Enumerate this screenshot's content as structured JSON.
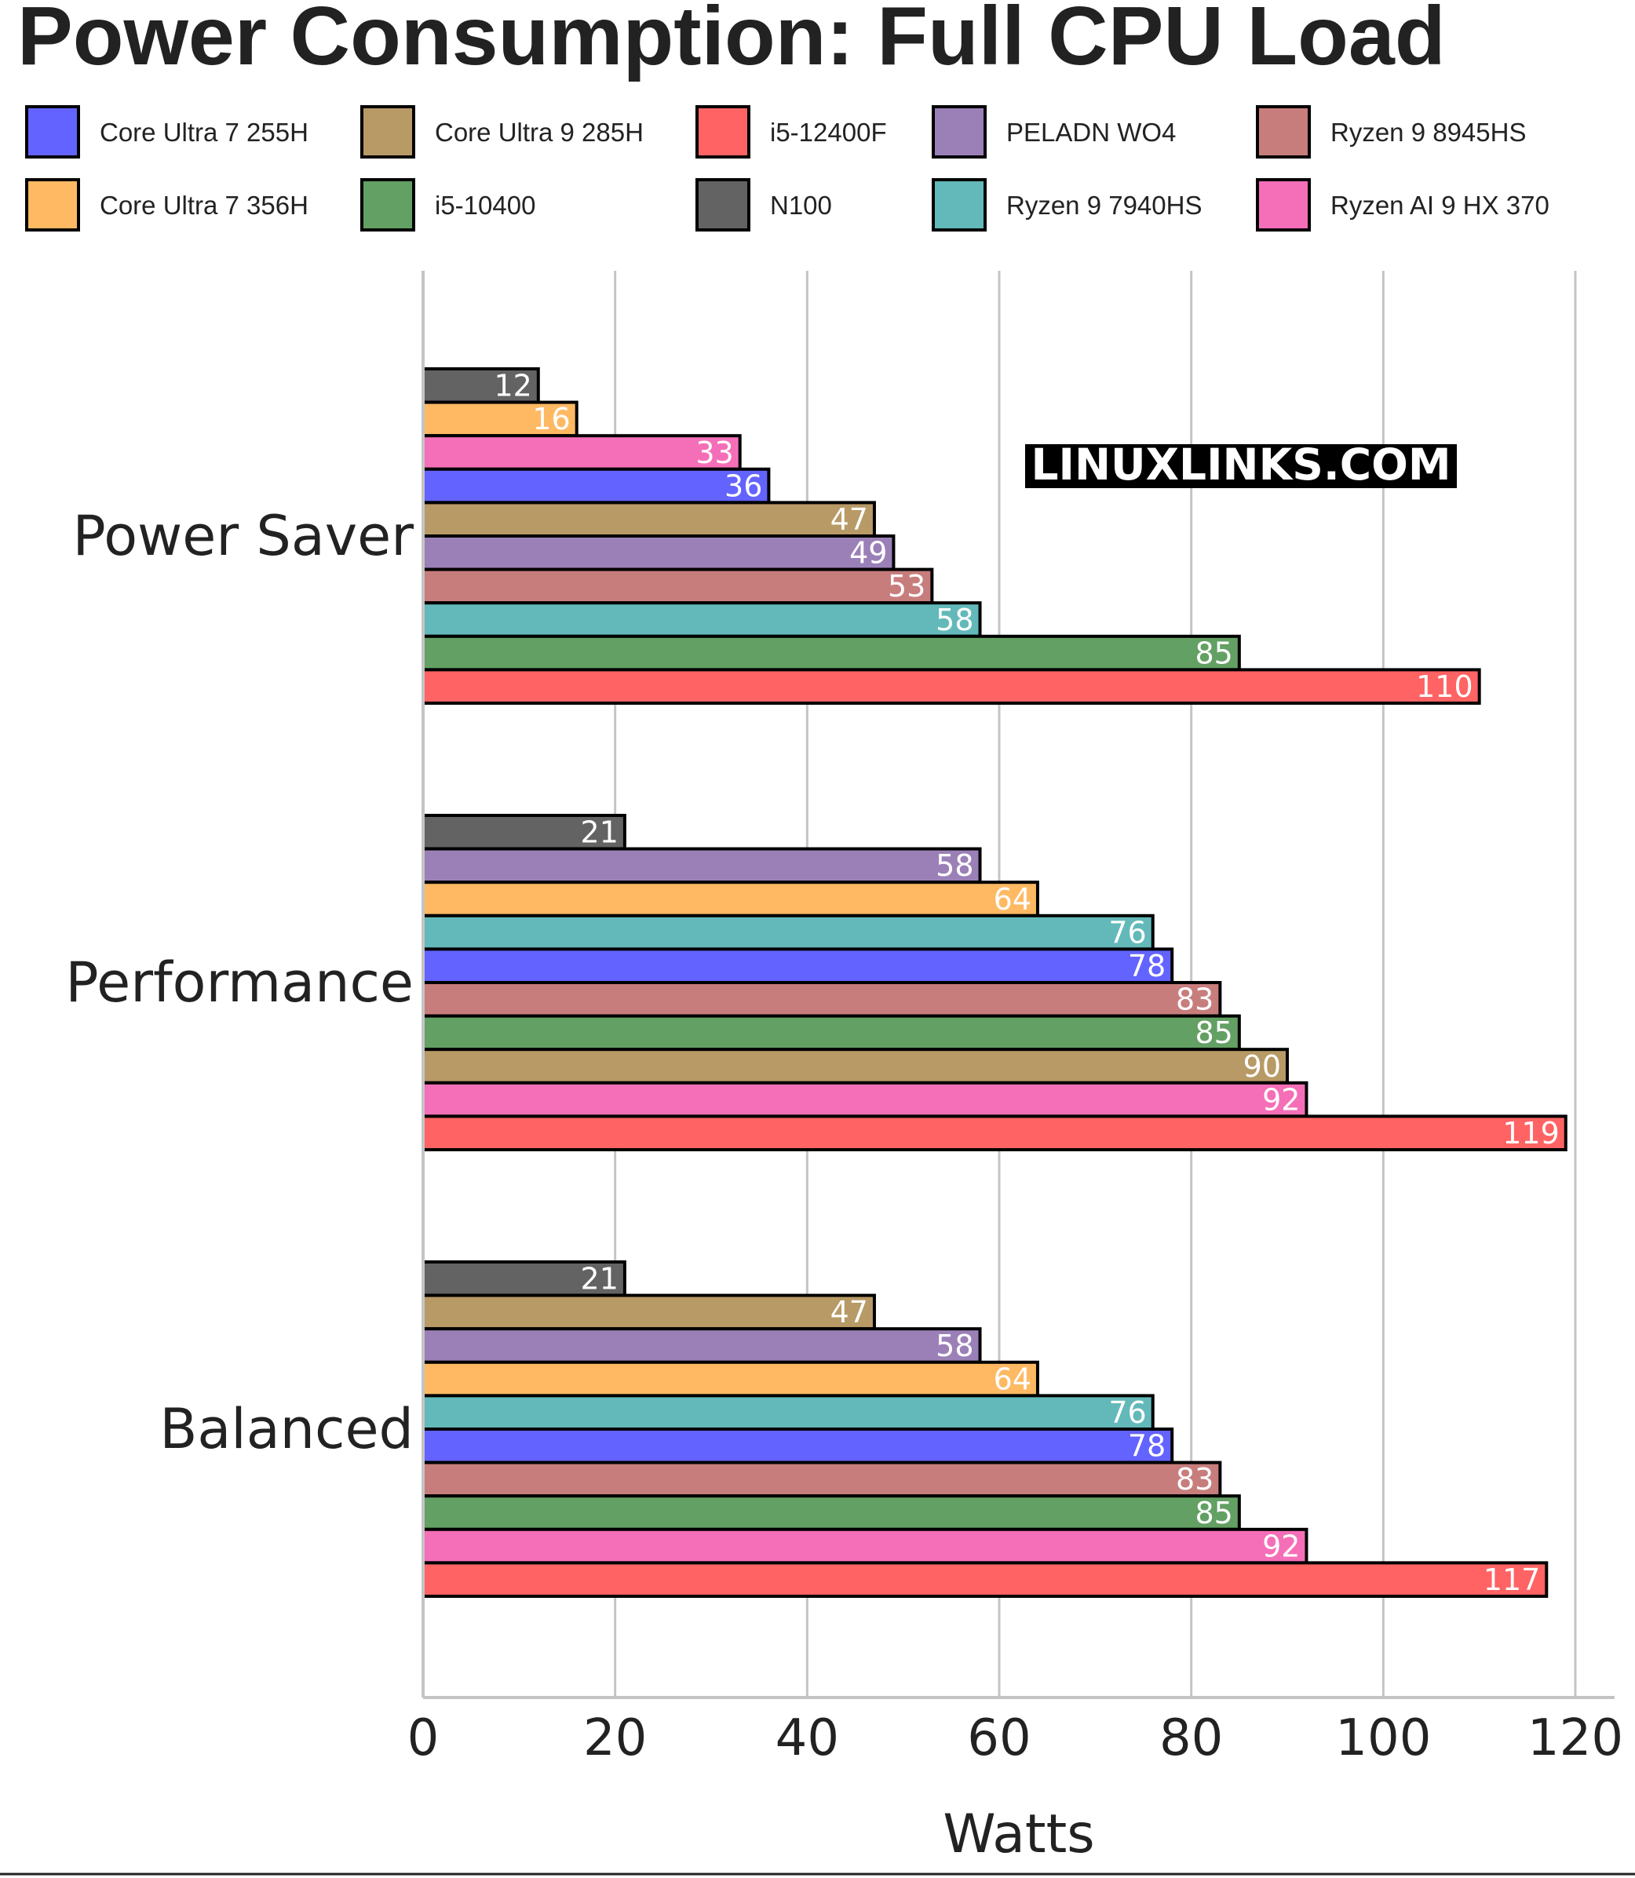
{
  "chart_data": {
    "type": "bar",
    "orientation": "horizontal",
    "title": "Power Consumption: Full CPU Load",
    "xlabel": "Watts",
    "xlim": [
      0,
      120
    ],
    "x_ticks": [
      "0",
      "20",
      "40",
      "60",
      "80",
      "100",
      "120"
    ],
    "grid": "vertical",
    "legend_position": "top",
    "watermark": "LINUXLINKS.COM",
    "legend": [
      {
        "name": "Core Ultra 7 255H",
        "color": "#6363ff"
      },
      {
        "name": "Core Ultra 9 285H",
        "color": "#b89a66"
      },
      {
        "name": "i5-12400F",
        "color": "#ff6363"
      },
      {
        "name": "PELADN WO4",
        "color": "#9b80b8"
      },
      {
        "name": "Ryzen 9 8945HS",
        "color": "#c87d7d"
      },
      {
        "name": "Core Ultra 7 356H",
        "color": "#ffb963"
      },
      {
        "name": "i5-10400",
        "color": "#63a063"
      },
      {
        "name": "N100",
        "color": "#636363"
      },
      {
        "name": "Ryzen 9 7940HS",
        "color": "#63b9b9"
      },
      {
        "name": "Ryzen AI 9 HX 370",
        "color": "#f56fb8"
      }
    ],
    "groups": [
      {
        "category": "Power Saver",
        "bars": [
          {
            "series": "N100",
            "value": 12,
            "label": "12"
          },
          {
            "series": "Core Ultra 7 356H",
            "value": 16,
            "label": "16"
          },
          {
            "series": "Ryzen AI 9 HX 370",
            "value": 33,
            "label": "33"
          },
          {
            "series": "Core Ultra 7 255H",
            "value": 36,
            "label": "36"
          },
          {
            "series": "Core Ultra 9 285H",
            "value": 47,
            "label": "47"
          },
          {
            "series": "PELADN WO4",
            "value": 49,
            "label": "49"
          },
          {
            "series": "Ryzen 9 8945HS",
            "value": 53,
            "label": "53"
          },
          {
            "series": "Ryzen 9 7940HS",
            "value": 58,
            "label": "58"
          },
          {
            "series": "i5-10400",
            "value": 85,
            "label": "85"
          },
          {
            "series": "i5-12400F",
            "value": 110,
            "label": "110"
          }
        ]
      },
      {
        "category": "Performance",
        "bars": [
          {
            "series": "N100",
            "value": 21,
            "label": "21"
          },
          {
            "series": "PELADN WO4",
            "value": 58,
            "label": "58"
          },
          {
            "series": "Core Ultra 7 356H",
            "value": 64,
            "label": "64"
          },
          {
            "series": "Ryzen 9 7940HS",
            "value": 76,
            "label": "76"
          },
          {
            "series": "Core Ultra 7 255H",
            "value": 78,
            "label": "78"
          },
          {
            "series": "Ryzen 9 8945HS",
            "value": 83,
            "label": "83"
          },
          {
            "series": "i5-10400",
            "value": 85,
            "label": "85"
          },
          {
            "series": "Core Ultra 9 285H",
            "value": 90,
            "label": "90"
          },
          {
            "series": "Ryzen AI 9 HX 370",
            "value": 92,
            "label": "92"
          },
          {
            "series": "i5-12400F",
            "value": 119,
            "label": "119"
          }
        ]
      },
      {
        "category": "Balanced",
        "bars": [
          {
            "series": "N100",
            "value": 21,
            "label": "21"
          },
          {
            "series": "Core Ultra 9 285H",
            "value": 47,
            "label": "47"
          },
          {
            "series": "PELADN WO4",
            "value": 58,
            "label": "58"
          },
          {
            "series": "Core Ultra 7 356H",
            "value": 64,
            "label": "64"
          },
          {
            "series": "Ryzen 9 7940HS",
            "value": 76,
            "label": "76"
          },
          {
            "series": "Core Ultra 7 255H",
            "value": 78,
            "label": "78"
          },
          {
            "series": "Ryzen 9 8945HS",
            "value": 83,
            "label": "83"
          },
          {
            "series": "i5-10400",
            "value": 85,
            "label": "85"
          },
          {
            "series": "Ryzen AI 9 HX 370",
            "value": 92,
            "label": "92"
          },
          {
            "series": "i5-12400F",
            "value": 117,
            "label": "117"
          }
        ]
      }
    ]
  }
}
